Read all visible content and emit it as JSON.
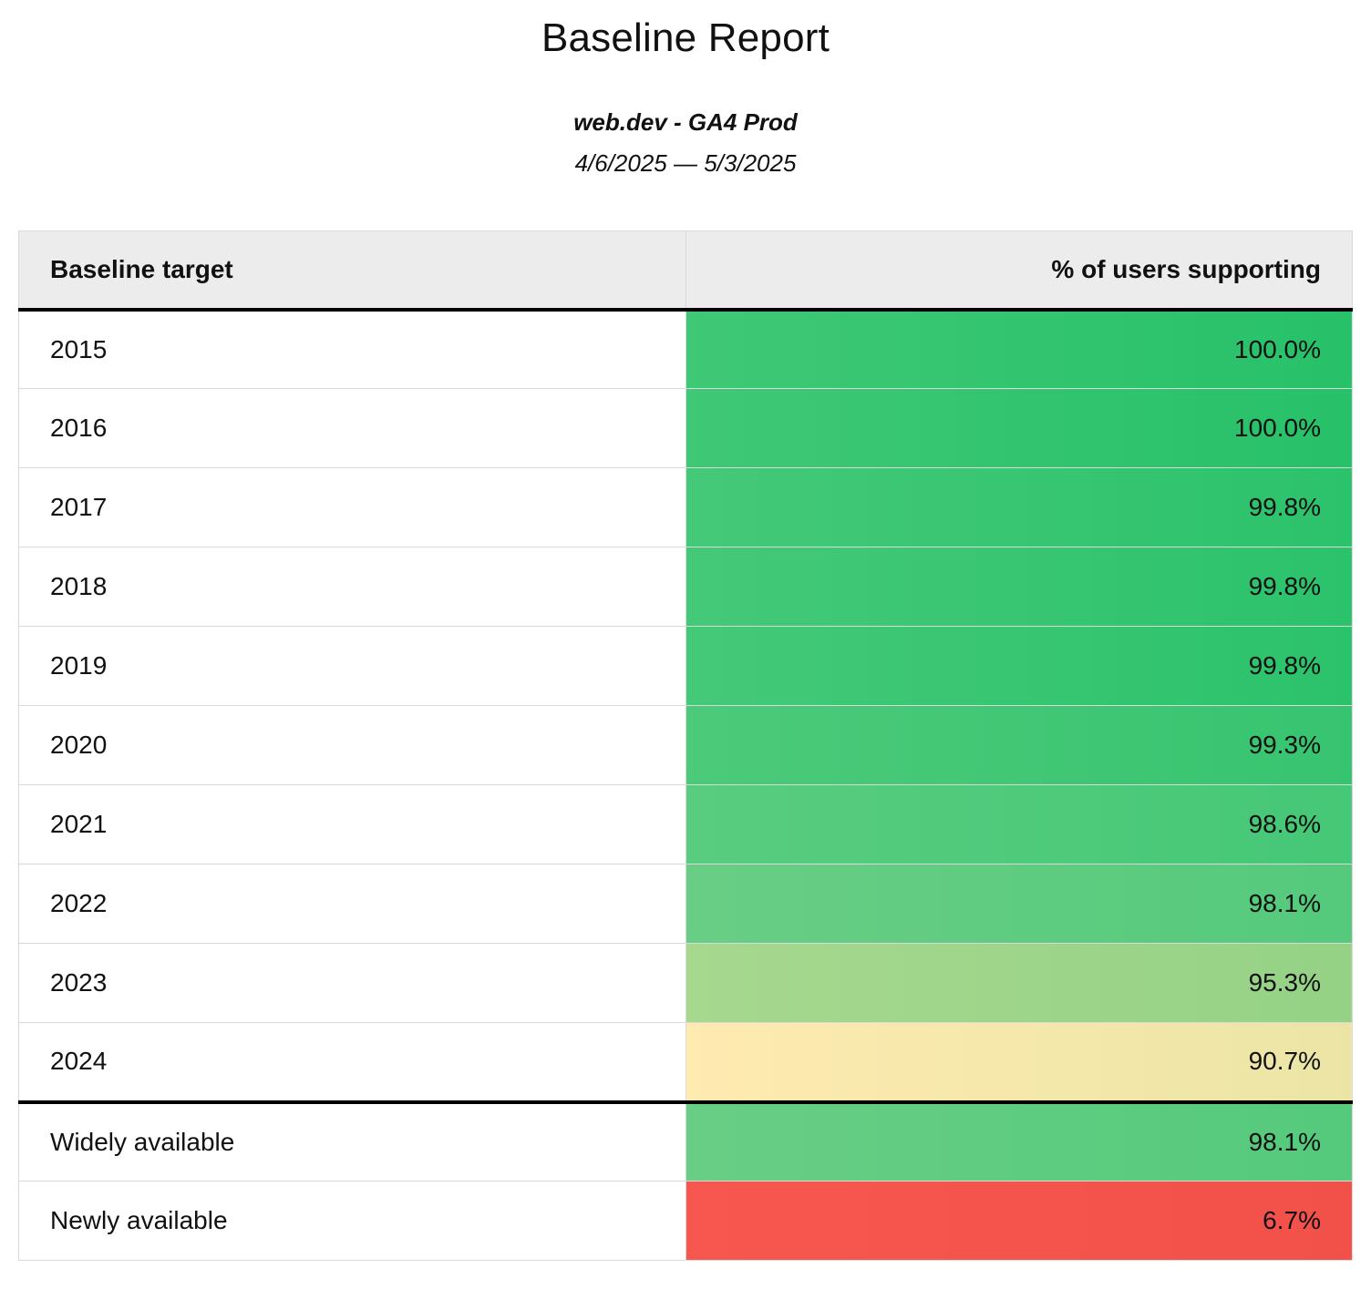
{
  "header": {
    "title": "Baseline Report",
    "subtitle": "web.dev - GA4 Prod",
    "date_range": "4/6/2025 — 5/3/2025"
  },
  "colors": {
    "page_bg": "#ffffff",
    "header_bg": "#ececec",
    "border_light": "#d9d9d9",
    "border_strong": "#000000",
    "text": "#111111"
  },
  "table": {
    "columns": [
      {
        "label": "Baseline target"
      },
      {
        "label": "% of users supporting"
      }
    ],
    "rows": [
      {
        "label": "2015",
        "value": "100.0%",
        "color_left": "#3fc876",
        "color_right": "#27c169",
        "divider_above": false
      },
      {
        "label": "2016",
        "value": "100.0%",
        "color_left": "#3fc876",
        "color_right": "#27c169",
        "divider_above": false
      },
      {
        "label": "2017",
        "value": "99.8%",
        "color_left": "#44c978",
        "color_right": "#2cc26c",
        "divider_above": false
      },
      {
        "label": "2018",
        "value": "99.8%",
        "color_left": "#44c978",
        "color_right": "#2cc26c",
        "divider_above": false
      },
      {
        "label": "2019",
        "value": "99.8%",
        "color_left": "#44c978",
        "color_right": "#2cc26c",
        "divider_above": false
      },
      {
        "label": "2020",
        "value": "99.3%",
        "color_left": "#4cca7a",
        "color_right": "#37c470",
        "divider_above": false
      },
      {
        "label": "2021",
        "value": "98.6%",
        "color_left": "#59cc7f",
        "color_right": "#45c877",
        "divider_above": false
      },
      {
        "label": "2022",
        "value": "98.1%",
        "color_left": "#68ce85",
        "color_right": "#55ca7c",
        "divider_above": false
      },
      {
        "label": "2023",
        "value": "95.3%",
        "color_left": "#a6d88e",
        "color_right": "#95d286",
        "divider_above": false
      },
      {
        "label": "2024",
        "value": "90.7%",
        "color_left": "#ffeab0",
        "color_right": "#ebe5a5",
        "divider_above": false
      },
      {
        "label": "Widely available",
        "value": "98.1%",
        "color_left": "#68ce85",
        "color_right": "#55ca7c",
        "divider_above": true
      },
      {
        "label": "Newly available",
        "value": "6.7%",
        "color_left": "#f7574f",
        "color_right": "#f2514a",
        "divider_above": false
      }
    ]
  },
  "chart_data": {
    "type": "table",
    "title": "Baseline Report",
    "subtitle": "web.dev - GA4 Prod",
    "date_range": "4/6/2025 — 5/3/2025",
    "columns": [
      "Baseline target",
      "% of users supporting"
    ],
    "categories": [
      "2015",
      "2016",
      "2017",
      "2018",
      "2019",
      "2020",
      "2021",
      "2022",
      "2023",
      "2024",
      "Widely available",
      "Newly available"
    ],
    "values": [
      100.0,
      100.0,
      99.8,
      99.8,
      99.8,
      99.3,
      98.6,
      98.1,
      95.3,
      90.7,
      98.1,
      6.7
    ],
    "value_format": "percent_1_decimal",
    "layout_hints": {
      "value_column_heatmap": "red-yellow-green scale by value",
      "thick_divider_after_row": "2024",
      "value_alignment": "right"
    }
  }
}
